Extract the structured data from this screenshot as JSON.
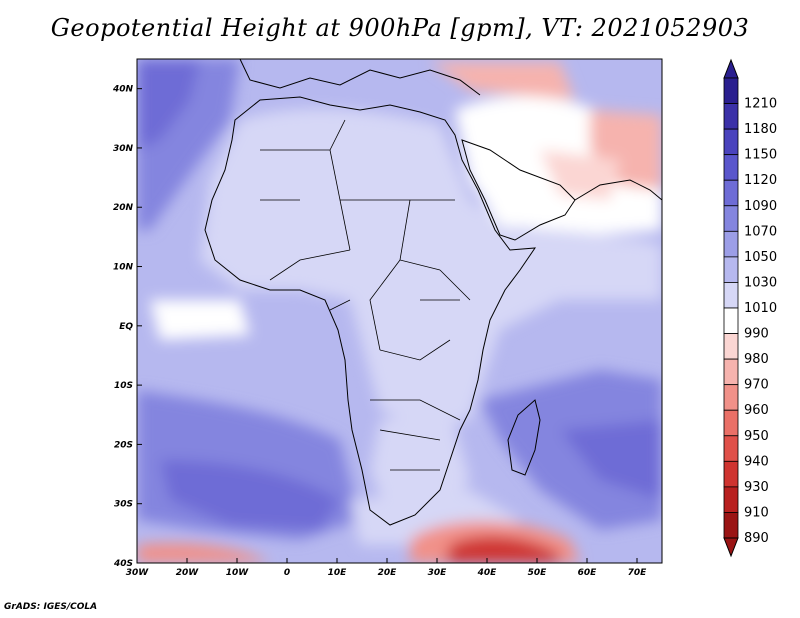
{
  "title": "Geopotential Height at 900hPa [gpm], VT: 2021052903",
  "footer": "GrADS: IGES/COLA",
  "map": {
    "lon_range": [
      -30,
      75
    ],
    "lat_range": [
      -40,
      45
    ],
    "lon_ticks": [
      {
        "value": -30,
        "label": "30W"
      },
      {
        "value": -20,
        "label": "20W"
      },
      {
        "value": -10,
        "label": "10W"
      },
      {
        "value": 0,
        "label": "0"
      },
      {
        "value": 10,
        "label": "10E"
      },
      {
        "value": 20,
        "label": "20E"
      },
      {
        "value": 30,
        "label": "30E"
      },
      {
        "value": 40,
        "label": "40E"
      },
      {
        "value": 50,
        "label": "50E"
      },
      {
        "value": 60,
        "label": "60E"
      },
      {
        "value": 70,
        "label": "70E"
      }
    ],
    "lat_ticks": [
      {
        "value": 40,
        "label": "40N"
      },
      {
        "value": 30,
        "label": "30N"
      },
      {
        "value": 20,
        "label": "20N"
      },
      {
        "value": 10,
        "label": "10N"
      },
      {
        "value": 0,
        "label": "EQ"
      },
      {
        "value": -10,
        "label": "10S"
      },
      {
        "value": -20,
        "label": "20S"
      },
      {
        "value": -30,
        "label": "30S"
      },
      {
        "value": -40,
        "label": "40S"
      }
    ]
  },
  "colorbar": {
    "levels": [
      {
        "label": "1210",
        "color": "#2a1f8f"
      },
      {
        "label": "1180",
        "color": "#3b31a8"
      },
      {
        "label": "1150",
        "color": "#4a43bd"
      },
      {
        "label": "1120",
        "color": "#5a56cc"
      },
      {
        "label": "1090",
        "color": "#6e6cd6"
      },
      {
        "label": "1070",
        "color": "#8485df"
      },
      {
        "label": "1050",
        "color": "#9c9ee7"
      },
      {
        "label": "1030",
        "color": "#b6b8ef"
      },
      {
        "label": "1010",
        "color": "#d6d7f6"
      },
      {
        "label": "990",
        "color": "#ffffff"
      },
      {
        "label": "980",
        "color": "#fbd6d3"
      },
      {
        "label": "970",
        "color": "#f6b3ae"
      },
      {
        "label": "960",
        "color": "#f19189"
      },
      {
        "label": "950",
        "color": "#ea7067"
      },
      {
        "label": "940",
        "color": "#e05049"
      },
      {
        "label": "930",
        "color": "#cf3430"
      },
      {
        "label": "910",
        "color": "#b8201f"
      },
      {
        "label": "890",
        "color": "#9a1414"
      }
    ]
  }
}
